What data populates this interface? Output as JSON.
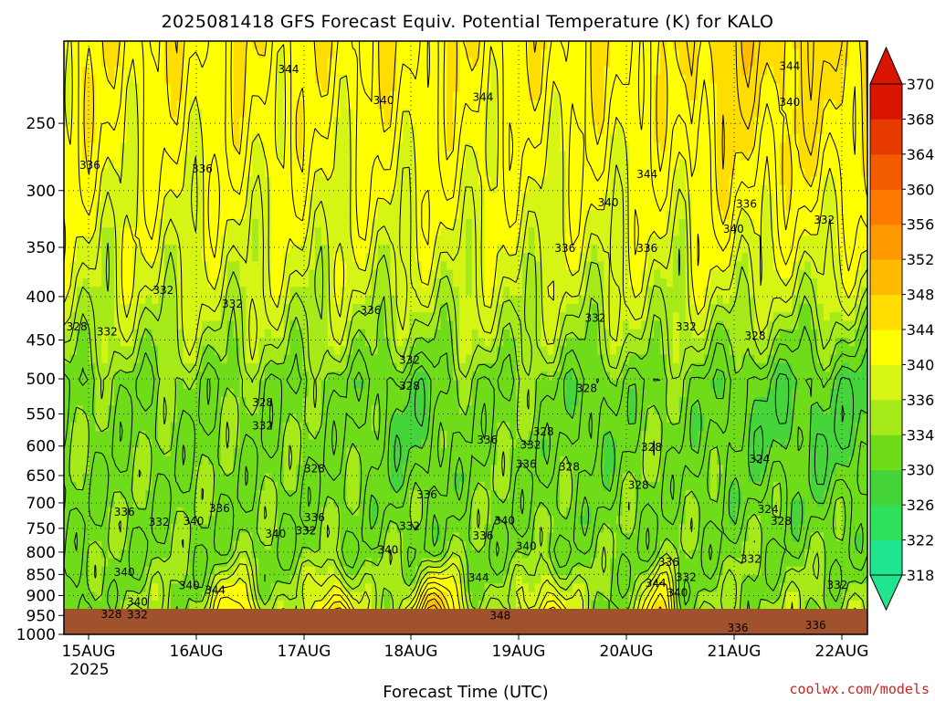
{
  "chart_data": {
    "type": "heatmap",
    "title": "2025081418 GFS Forecast Equiv. Potential Temperature (K) for KALO",
    "xlabel": "Forecast Time (UTC)",
    "ylabel": "",
    "x_ticks": [
      "15AUG",
      "16AUG",
      "17AUG",
      "18AUG",
      "19AUG",
      "20AUG",
      "21AUG",
      "22AUG"
    ],
    "x_year": "2025",
    "x_range_hours": [
      0,
      186
    ],
    "y_ticks": [
      250,
      300,
      350,
      400,
      450,
      500,
      550,
      600,
      650,
      700,
      750,
      800,
      850,
      900,
      950,
      1000
    ],
    "y_range_hpa": [
      1000,
      200
    ],
    "y_scale": "log",
    "colorbar": {
      "levels": [
        318,
        322,
        326,
        330,
        334,
        336,
        340,
        344,
        348,
        352,
        356,
        360,
        364,
        368,
        370
      ],
      "colors": [
        "#1fe58f",
        "#2ee05a",
        "#45d53a",
        "#6fdc1a",
        "#a6ea1a",
        "#d6f515",
        "#ffff00",
        "#ffdd00",
        "#ffbb00",
        "#ff9900",
        "#ff7a00",
        "#f45a00",
        "#e63a00",
        "#d91500"
      ],
      "extend": "both"
    },
    "surface_color": "#a0522d",
    "contour_labels": [
      {
        "v": 344,
        "t": 52,
        "p": 216
      },
      {
        "v": 340,
        "t": 74,
        "p": 235
      },
      {
        "v": 344,
        "t": 97,
        "p": 233
      },
      {
        "v": 344,
        "t": 135,
        "p": 287
      },
      {
        "v": 340,
        "t": 126,
        "p": 310
      },
      {
        "v": 336,
        "t": 116,
        "p": 351
      },
      {
        "v": 336,
        "t": 135,
        "p": 351
      },
      {
        "v": 340,
        "t": 155,
        "p": 333
      },
      {
        "v": 336,
        "t": 158,
        "p": 311
      },
      {
        "v": 340,
        "t": 168,
        "p": 236
      },
      {
        "v": 344,
        "t": 168,
        "p": 214
      },
      {
        "v": 332,
        "t": 176,
        "p": 325
      },
      {
        "v": 336,
        "t": 6,
        "p": 280
      },
      {
        "v": 336,
        "t": 32,
        "p": 283
      },
      {
        "v": 332,
        "t": 23,
        "p": 393
      },
      {
        "v": 332,
        "t": 39,
        "p": 408
      },
      {
        "v": 328,
        "t": 3,
        "p": 434
      },
      {
        "v": 332,
        "t": 10,
        "p": 440
      },
      {
        "v": 336,
        "t": 71,
        "p": 415
      },
      {
        "v": 332,
        "t": 80,
        "p": 475
      },
      {
        "v": 328,
        "t": 80,
        "p": 510
      },
      {
        "v": 328,
        "t": 46,
        "p": 533
      },
      {
        "v": 332,
        "t": 46,
        "p": 568
      },
      {
        "v": 332,
        "t": 123,
        "p": 424
      },
      {
        "v": 328,
        "t": 121,
        "p": 513
      },
      {
        "v": 336,
        "t": 98,
        "p": 590
      },
      {
        "v": 332,
        "t": 108,
        "p": 598
      },
      {
        "v": 328,
        "t": 111,
        "p": 577
      },
      {
        "v": 336,
        "t": 107,
        "p": 630
      },
      {
        "v": 328,
        "t": 117,
        "p": 635
      },
      {
        "v": 328,
        "t": 136,
        "p": 602
      },
      {
        "v": 328,
        "t": 133,
        "p": 667
      },
      {
        "v": 332,
        "t": 144,
        "p": 434
      },
      {
        "v": 328,
        "t": 160,
        "p": 445
      },
      {
        "v": 324,
        "t": 161,
        "p": 622
      },
      {
        "v": 328,
        "t": 58,
        "p": 638
      },
      {
        "v": 336,
        "t": 14,
        "p": 718
      },
      {
        "v": 332,
        "t": 22,
        "p": 737
      },
      {
        "v": 336,
        "t": 36,
        "p": 711
      },
      {
        "v": 340,
        "t": 30,
        "p": 736
      },
      {
        "v": 336,
        "t": 58,
        "p": 728
      },
      {
        "v": 332,
        "t": 56,
        "p": 755
      },
      {
        "v": 340,
        "t": 49,
        "p": 762
      },
      {
        "v": 340,
        "t": 75,
        "p": 795
      },
      {
        "v": 332,
        "t": 80,
        "p": 746
      },
      {
        "v": 336,
        "t": 84,
        "p": 685
      },
      {
        "v": 340,
        "t": 102,
        "p": 735
      },
      {
        "v": 336,
        "t": 97,
        "p": 765
      },
      {
        "v": 340,
        "t": 107,
        "p": 787
      },
      {
        "v": 344,
        "t": 96,
        "p": 858
      },
      {
        "v": 348,
        "t": 101,
        "p": 951
      },
      {
        "v": 336,
        "t": 140,
        "p": 822
      },
      {
        "v": 344,
        "t": 137,
        "p": 871
      },
      {
        "v": 340,
        "t": 142,
        "p": 894
      },
      {
        "v": 332,
        "t": 144,
        "p": 857
      },
      {
        "v": 332,
        "t": 159,
        "p": 815
      },
      {
        "v": 332,
        "t": 179,
        "p": 875
      },
      {
        "v": 336,
        "t": 156,
        "p": 983
      },
      {
        "v": 336,
        "t": 174,
        "p": 975
      },
      {
        "v": 340,
        "t": 14,
        "p": 845
      },
      {
        "v": 340,
        "t": 17,
        "p": 916
      },
      {
        "v": 328,
        "t": 11,
        "p": 947
      },
      {
        "v": 332,
        "t": 17,
        "p": 948
      },
      {
        "v": 340,
        "t": 29,
        "p": 876
      },
      {
        "v": 344,
        "t": 35,
        "p": 887
      },
      {
        "v": 324,
        "t": 163,
        "p": 712
      },
      {
        "v": 328,
        "t": 166,
        "p": 736
      }
    ]
  },
  "credit": "coolwx.com/models"
}
